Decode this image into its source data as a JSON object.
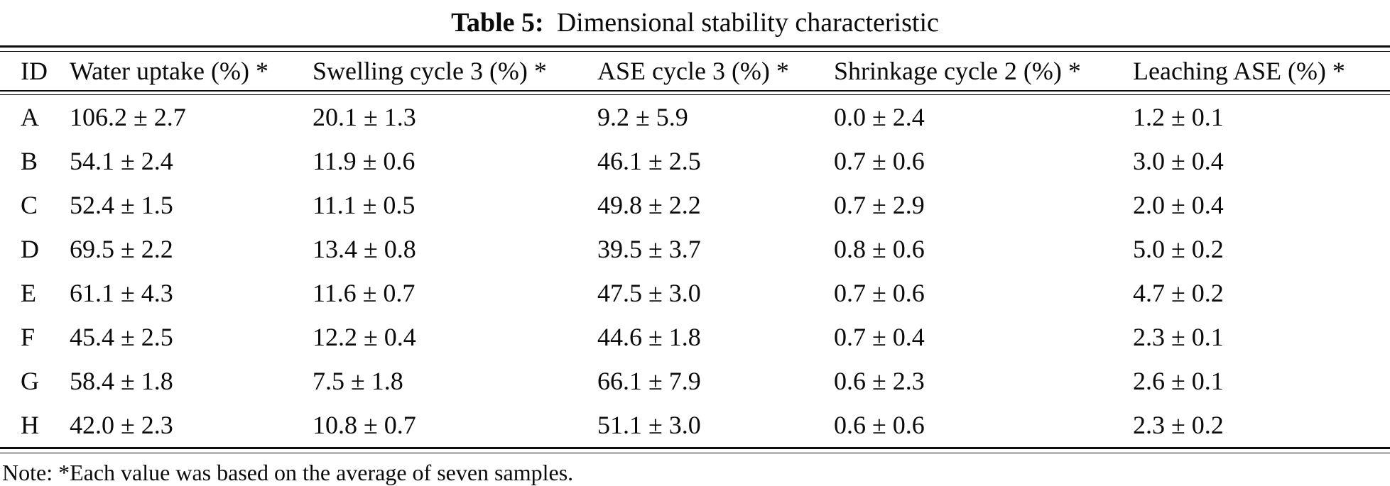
{
  "title": {
    "label": "Table 5:",
    "text": "Dimensional stability characteristic"
  },
  "table": {
    "columns": [
      "ID",
      "Water uptake (%) *",
      "Swelling cycle 3 (%) *",
      "ASE cycle 3 (%) *",
      "Shrinkage cycle 2 (%) *",
      "Leaching ASE (%) *"
    ],
    "rows": [
      {
        "id": "A",
        "values": [
          "106.2 ± 2.7",
          "20.1 ± 1.3",
          "9.2 ± 5.9",
          "0.0 ± 2.4",
          "1.2 ± 0.1"
        ]
      },
      {
        "id": "B",
        "values": [
          "54.1 ± 2.4",
          "11.9 ± 0.6",
          "46.1 ± 2.5",
          "0.7 ± 0.6",
          "3.0 ± 0.4"
        ]
      },
      {
        "id": "C",
        "values": [
          "52.4 ± 1.5",
          "11.1 ± 0.5",
          "49.8 ± 2.2",
          "0.7 ± 2.9",
          "2.0 ± 0.4"
        ]
      },
      {
        "id": "D",
        "values": [
          "69.5 ± 2.2",
          "13.4 ± 0.8",
          "39.5 ± 3.7",
          "0.8 ± 0.6",
          "5.0 ± 0.2"
        ]
      },
      {
        "id": "E",
        "values": [
          "61.1 ± 4.3",
          "11.6 ± 0.7",
          "47.5 ± 3.0",
          "0.7 ± 0.6",
          "4.7 ± 0.2"
        ]
      },
      {
        "id": "F",
        "values": [
          "45.4 ± 2.5",
          "12.2 ± 0.4",
          "44.6 ± 1.8",
          "0.7 ± 0.4",
          "2.3 ± 0.1"
        ]
      },
      {
        "id": "G",
        "values": [
          "58.4 ± 1.8",
          "7.5 ± 1.8",
          "66.1 ± 7.9",
          "0.6 ± 2.3",
          "2.6 ± 0.1"
        ]
      },
      {
        "id": "H",
        "values": [
          "42.0 ± 2.3",
          "10.8 ± 0.7",
          "51.1 ± 3.0",
          "0.6 ± 0.6",
          "2.3 ± 0.2"
        ]
      }
    ]
  },
  "note": "Note: *Each value was based on the average of seven samples."
}
